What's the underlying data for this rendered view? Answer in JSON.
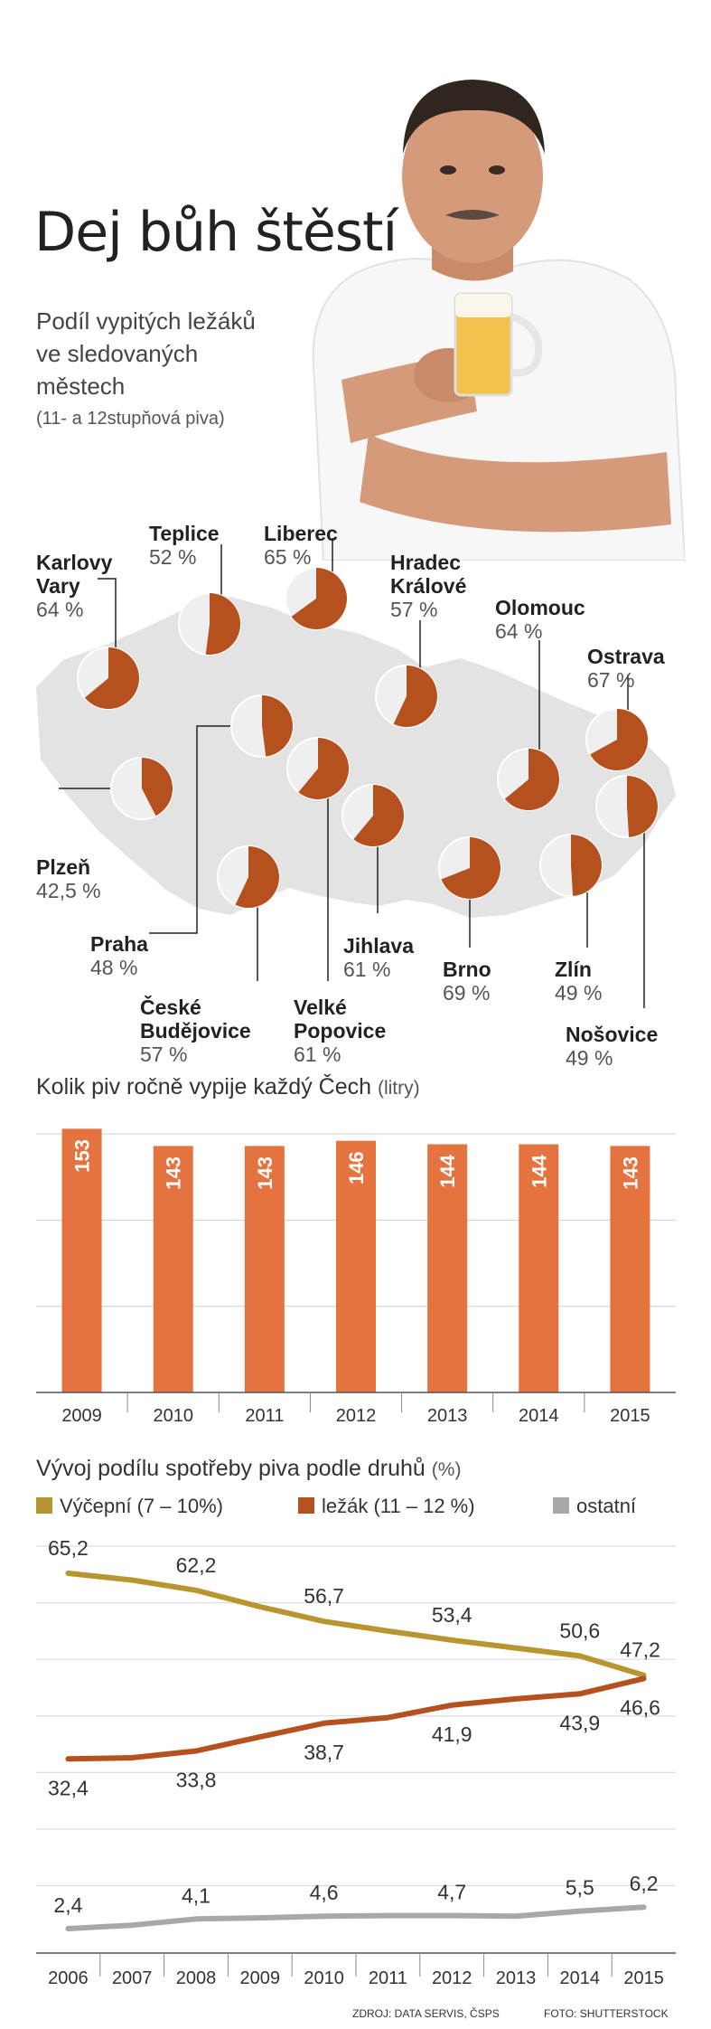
{
  "title": "Dej bůh štěstí",
  "map_section": {
    "subtitle_lines": [
      "Podíl vypitých ležáků",
      "ve sledovaných",
      "městech"
    ],
    "subtitle_note": "(11- a 12stupňová piva)"
  },
  "colors": {
    "pie_fill": "#b5501f",
    "pie_bg": "#f0efef",
    "map": "#e4e3e3",
    "bar": "#e47340",
    "line_vycepni": "#b89530",
    "line_lezak": "#b5501f",
    "line_ostatni": "#a8a8a8"
  },
  "chart_data": [
    {
      "type": "pie",
      "title": "Podíl vypitých ležáků ve sledovaných městech",
      "unit": "%",
      "items": [
        {
          "city": "Karlovy Vary",
          "city_lines": [
            "Karlovy",
            "Vary"
          ],
          "value": 64,
          "label": "64 %"
        },
        {
          "city": "Teplice",
          "city_lines": [
            "Teplice"
          ],
          "value": 52,
          "label": "52 %"
        },
        {
          "city": "Liberec",
          "city_lines": [
            "Liberec"
          ],
          "value": 65,
          "label": "65 %"
        },
        {
          "city": "Hradec Králové",
          "city_lines": [
            "Hradec",
            "Králové"
          ],
          "value": 57,
          "label": "57 %"
        },
        {
          "city": "Olomouc",
          "city_lines": [
            "Olomouc"
          ],
          "value": 64,
          "label": "64 %"
        },
        {
          "city": "Ostrava",
          "city_lines": [
            "Ostrava"
          ],
          "value": 67,
          "label": "67 %"
        },
        {
          "city": "Plzeň",
          "city_lines": [
            "Plzeň"
          ],
          "value": 42.5,
          "label": "42,5 %"
        },
        {
          "city": "Praha",
          "city_lines": [
            "Praha"
          ],
          "value": 48,
          "label": "48 %"
        },
        {
          "city": "České Budějovice",
          "city_lines": [
            "České",
            "Budějovice"
          ],
          "value": 57,
          "label": "57 %"
        },
        {
          "city": "Velké Popovice",
          "city_lines": [
            "Velké",
            "Popovice"
          ],
          "value": 61,
          "label": "61 %"
        },
        {
          "city": "Jihlava",
          "city_lines": [
            "Jihlava"
          ],
          "value": 61,
          "label": "61 %"
        },
        {
          "city": "Brno",
          "city_lines": [
            "Brno"
          ],
          "value": 69,
          "label": "69 %"
        },
        {
          "city": "Zlín",
          "city_lines": [
            "Zlín"
          ],
          "value": 49,
          "label": "49 %"
        },
        {
          "city": "Nošovice",
          "city_lines": [
            "Nošovice"
          ],
          "value": 49,
          "label": "49 %"
        }
      ]
    },
    {
      "type": "bar",
      "title": "Kolik piv ročně vypije každý Čech",
      "unit": "(litry)",
      "categories": [
        "2009",
        "2010",
        "2011",
        "2012",
        "2013",
        "2014",
        "2015"
      ],
      "values": [
        153,
        143,
        143,
        146,
        144,
        144,
        143
      ],
      "ylim": [
        0,
        160
      ],
      "grid": true
    },
    {
      "type": "line",
      "title": "Vývoj podílu spotřeby piva podle druhů",
      "unit": "(%)",
      "x": [
        "2006",
        "2007",
        "2008",
        "2009",
        "2010",
        "2011",
        "2012",
        "2013",
        "2014",
        "2015"
      ],
      "ylim": [
        0,
        70
      ],
      "grid": true,
      "legend_position": "top",
      "series": [
        {
          "name": "Výčepní (7 – 10%)",
          "values": [
            65.2,
            64.0,
            62.2,
            59.3,
            56.7,
            55.0,
            53.4,
            52.0,
            50.6,
            47.2
          ],
          "labels": {
            "2006": "65,2",
            "2008": "62,2",
            "2010": "56,7",
            "2012": "53,4",
            "2014": "50,6",
            "2015": "47,2"
          }
        },
        {
          "name": "ležák (11 – 12 %)",
          "values": [
            32.4,
            32.6,
            33.8,
            36.3,
            38.7,
            39.7,
            41.9,
            43.0,
            43.9,
            46.6
          ],
          "labels": {
            "2006": "32,4",
            "2008": "33,8",
            "2010": "38,7",
            "2012": "41,9",
            "2014": "43,9",
            "2015": "46,6"
          }
        },
        {
          "name": "ostatní",
          "values": [
            2.4,
            3.0,
            4.1,
            4.3,
            4.6,
            4.7,
            4.7,
            4.6,
            5.5,
            6.2
          ],
          "labels": {
            "2006": "2,4",
            "2008": "4,1",
            "2010": "4,6",
            "2012": "4,7",
            "2014": "5,5",
            "2015": "6,2"
          }
        }
      ]
    }
  ],
  "footer": {
    "source": "ZDROJ: DATA SERVIS, ČSPS",
    "photo": "FOTO: SHUTTERSTOCK"
  }
}
